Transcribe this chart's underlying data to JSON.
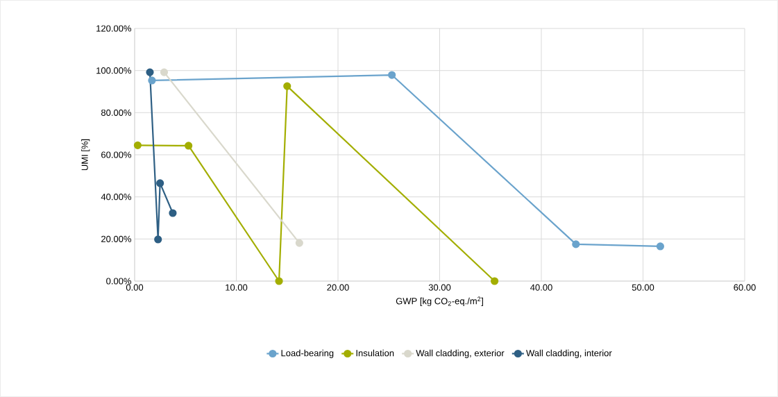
{
  "chart_data": {
    "type": "line",
    "xlabel": "GWP [kg CO$_{2}$-eq./m$^{2}$]",
    "ylabel": "UMI [%]",
    "xlim": [
      0,
      60
    ],
    "ylim": [
      0,
      120
    ],
    "xticks": [
      {
        "value": 0,
        "label": "0.00"
      },
      {
        "value": 10,
        "label": "10.00"
      },
      {
        "value": 20,
        "label": "20.00"
      },
      {
        "value": 30,
        "label": "30.00"
      },
      {
        "value": 40,
        "label": "40.00"
      },
      {
        "value": 50,
        "label": "50.00"
      },
      {
        "value": 60,
        "label": "60.00"
      }
    ],
    "yticks": [
      {
        "value": 0,
        "label": "0.00%"
      },
      {
        "value": 20,
        "label": "20.00%"
      },
      {
        "value": 40,
        "label": "40.00%"
      },
      {
        "value": 60,
        "label": "60.00%"
      },
      {
        "value": 80,
        "label": "80.00%"
      },
      {
        "value": 100,
        "label": "100.00%"
      },
      {
        "value": 120,
        "label": "120.00%"
      }
    ],
    "grid": true,
    "legend": "bottom",
    "marker": "circle",
    "line_style": "solid",
    "series": [
      {
        "name": "Load-bearing",
        "color": "#6aa3cc",
        "x": [
          1.7,
          25.3,
          43.4,
          51.7
        ],
        "values": [
          95.3,
          97.9,
          17.5,
          16.5
        ]
      },
      {
        "name": "Insulation",
        "color": "#a3ae00",
        "x": [
          0.3,
          5.3,
          14.2,
          15.0,
          35.4
        ],
        "values": [
          64.5,
          64.3,
          0,
          92.6,
          0
        ]
      },
      {
        "name": "Wall cladding, exterior",
        "color": "#d9d8cc",
        "x": [
          2.9,
          16.2
        ],
        "values": [
          99.2,
          18.1
        ]
      },
      {
        "name": "Wall cladding, interior",
        "color": "#2e5f84",
        "x": [
          1.5,
          2.3,
          2.5,
          3.75
        ],
        "values": [
          99.2,
          19.8,
          46.5,
          32.3
        ]
      }
    ]
  }
}
